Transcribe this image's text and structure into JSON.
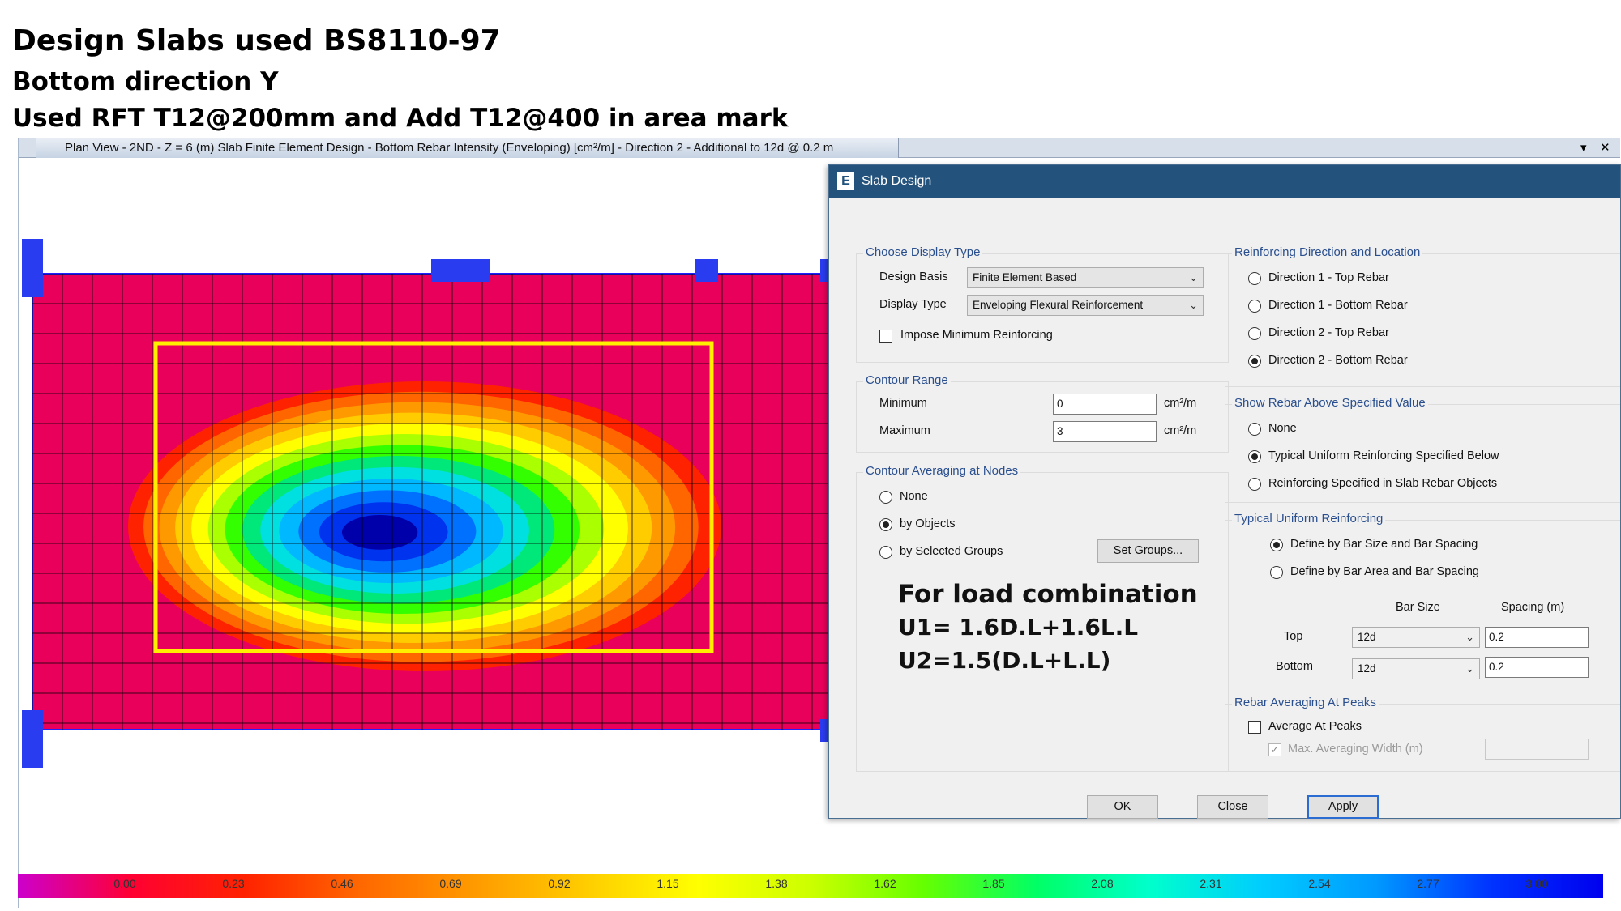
{
  "slide": {
    "title": "Design Slabs used BS8110-97",
    "subtitle": "Bottom direction Y",
    "note": "Used RFT T12@200mm and Add T12@400 in area mark"
  },
  "plan_window": {
    "title": "Plan View - 2ND - Z = 6 (m)  Slab Finite Element Design - Bottom Rebar Intensity (Enveloping) [cm²/m] - Direction 2 - Additional to 12d @ 0.2 m",
    "dropdown_glyph": "▾",
    "close_glyph": "✕"
  },
  "dialog": {
    "title": "Slab Design",
    "logo": "E",
    "display_type_group": {
      "label": "Choose Display Type",
      "design_basis_label": "Design Basis",
      "design_basis_value": "Finite Element Based",
      "display_type_label": "Display Type",
      "display_type_value": "Enveloping Flexural Reinforcement",
      "impose_min_label": "Impose Minimum Reinforcing",
      "impose_min_checked": false
    },
    "contour_range": {
      "label": "Contour Range",
      "min_label": "Minimum",
      "min_value": "0",
      "max_label": "Maximum",
      "max_value": "3",
      "unit": "cm²/m"
    },
    "contour_averaging": {
      "label": "Contour Averaging at Nodes",
      "options": [
        "None",
        "by Objects",
        "by Selected Groups"
      ],
      "selected": 1,
      "set_groups_button": "Set Groups..."
    },
    "rebar_direction": {
      "label": "Reinforcing Direction and Location",
      "options": [
        "Direction 1  -  Top Rebar",
        "Direction 1  -  Bottom Rebar",
        "Direction 2  -  Top Rebar",
        "Direction 2  -  Bottom Rebar"
      ],
      "selected": 3
    },
    "show_rebar": {
      "label": "Show Rebar Above Specified Value",
      "options": [
        "None",
        "Typical Uniform Reinforcing Specified Below",
        "Reinforcing Specified in Slab Rebar Objects"
      ],
      "selected": 1
    },
    "typical_uniform": {
      "label": "Typical Uniform Reinforcing",
      "options": [
        "Define by Bar Size and Bar Spacing",
        "Define by Bar Area and Bar Spacing"
      ],
      "selected": 0,
      "col_bar_size": "Bar Size",
      "col_spacing": "Spacing  (m)",
      "top_label": "Top",
      "top_bar": "12d",
      "top_spacing": "0.2",
      "bottom_label": "Bottom",
      "bottom_bar": "12d",
      "bottom_spacing": "0.2"
    },
    "rebar_averaging": {
      "label": "Rebar Averaging At Peaks",
      "average_label": "Average At Peaks",
      "average_checked": false,
      "max_width_label": "Max. Averaging Width  (m)",
      "max_width_value": ""
    },
    "buttons": {
      "ok": "OK",
      "close": "Close",
      "apply": "Apply"
    }
  },
  "annotation": {
    "heading": "For load combination",
    "u1": "U1= 1.6D.L+1.6L.L",
    "u2": "U2=1.5(D.L+L.L)"
  },
  "legend": {
    "values": [
      "0.00",
      "0.23",
      "0.46",
      "0.69",
      "0.92",
      "1.15",
      "1.38",
      "1.62",
      "1.85",
      "2.08",
      "2.31",
      "2.54",
      "2.77",
      "3.00"
    ],
    "colors": [
      "#cc00cc",
      "#ff0033",
      "#ff2200",
      "#ff6600",
      "#ff9900",
      "#ffcc00",
      "#ffff00",
      "#ccff00",
      "#66ff00",
      "#00ff66",
      "#00ffcc",
      "#00ccff",
      "#0099ff",
      "#0033ff",
      "#0000ee"
    ]
  },
  "contour_colors": [
    "#e8005a",
    "#ff2200",
    "#ff6600",
    "#ff9900",
    "#ffcc00",
    "#ffff00",
    "#aaff00",
    "#33ff00",
    "#00e87a",
    "#00e0e0",
    "#00b8ff",
    "#0070ff",
    "#0033ee",
    "#0000aa"
  ]
}
